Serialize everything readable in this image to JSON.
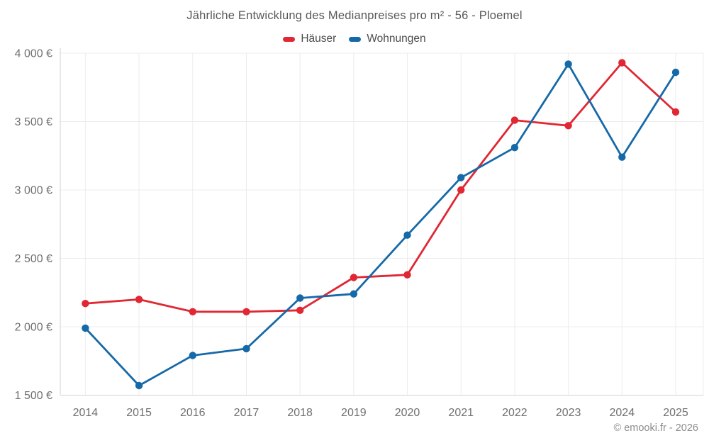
{
  "title": "Jährliche Entwicklung des Medianpreises pro m² - 56 - Ploemel",
  "copyright": "© emooki.fr - 2026",
  "legend": {
    "items": [
      {
        "label": "Häuser",
        "color": "#e02733"
      },
      {
        "label": "Wohnungen",
        "color": "#1669a8"
      }
    ]
  },
  "chart_data": {
    "type": "line",
    "title": "Jährliche Entwicklung des Medianpreises pro m² - 56 - Ploemel",
    "x": [
      2014,
      2015,
      2016,
      2017,
      2018,
      2019,
      2020,
      2021,
      2022,
      2023,
      2024,
      2025
    ],
    "xtick_labels": [
      "2014",
      "2015",
      "2016",
      "2017",
      "2018",
      "2019",
      "2020",
      "2021",
      "2022",
      "2023",
      "2024",
      "2025"
    ],
    "series": [
      {
        "name": "Häuser",
        "color": "#e02733",
        "values": [
          2170,
          2200,
          2110,
          2110,
          2120,
          2360,
          2380,
          3000,
          3510,
          3470,
          3930,
          3570
        ]
      },
      {
        "name": "Wohnungen",
        "color": "#1669a8",
        "values": [
          1990,
          1570,
          1790,
          1840,
          2210,
          2240,
          2670,
          3090,
          3310,
          3920,
          3240,
          3860
        ]
      }
    ],
    "ylim": [
      1500,
      4000
    ],
    "yticks": [
      1500,
      2000,
      2500,
      3000,
      3500,
      4000
    ],
    "ytick_labels": [
      "1 500 €",
      "2 000 €",
      "2 500 €",
      "3 000 €",
      "3 500 €",
      "4 000 €"
    ],
    "xlabel": "",
    "ylabel": "",
    "currency": "€",
    "grid": true,
    "legend_position": "top",
    "colors": {
      "grid_line": "#ececec",
      "axis_line": "#d2d2d2",
      "tick_label": "#707070",
      "title_text": "#585858",
      "copyright_text": "#8c8c8c"
    }
  }
}
